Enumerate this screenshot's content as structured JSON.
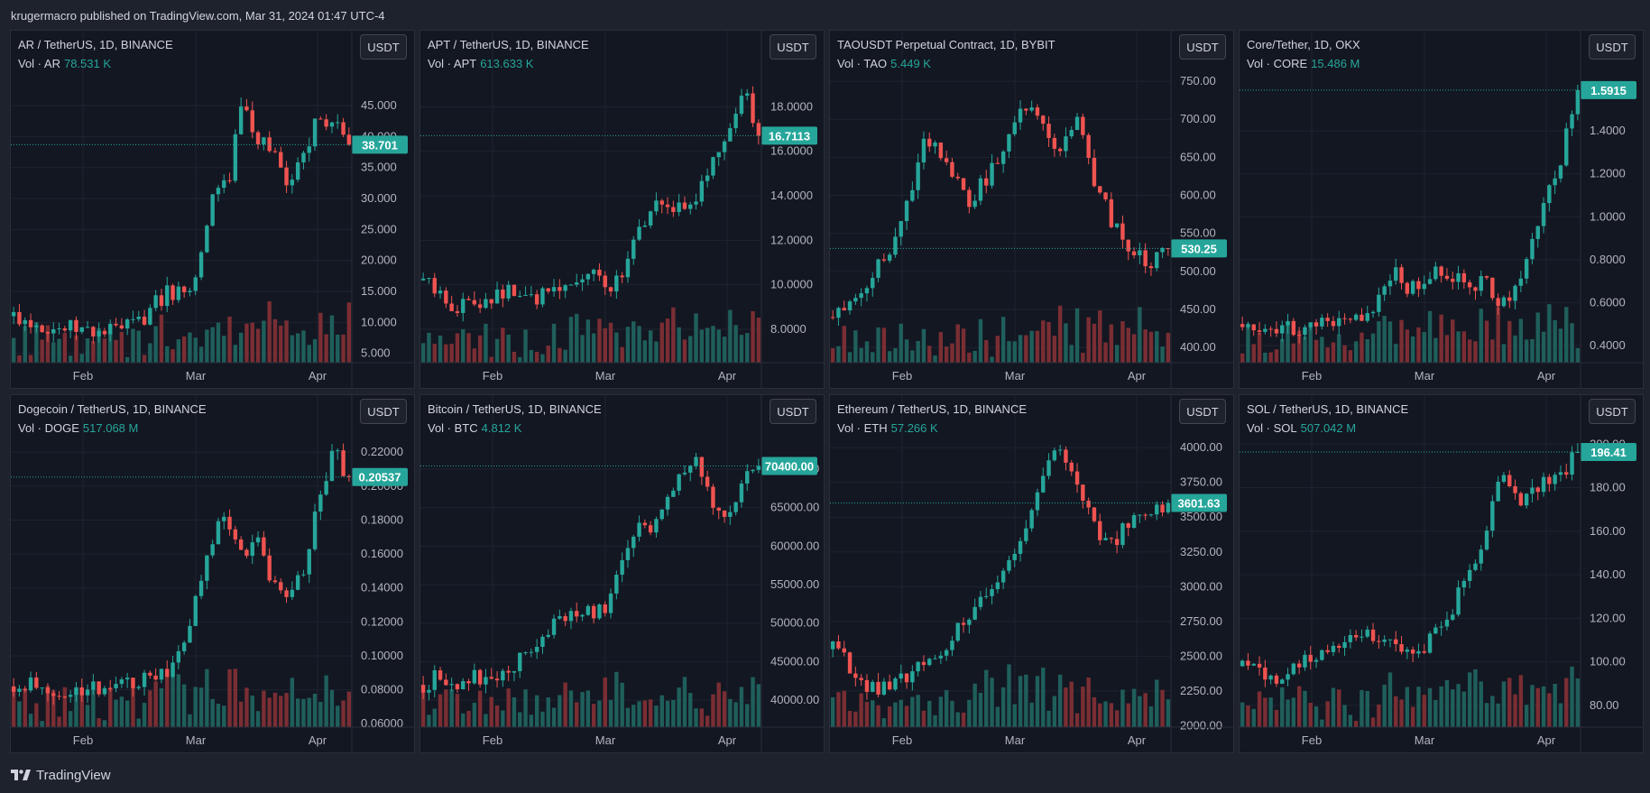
{
  "header": {
    "text": "krugermacro published on TradingView.com, Mar 31, 2024 01:47 UTC-4"
  },
  "footer": {
    "brand": "TradingView"
  },
  "colors": {
    "up": "#26a69a",
    "down": "#ef5350",
    "bg": "#131722",
    "grid": "#1f2330",
    "text": "#b2b5be"
  },
  "x_ticks": [
    "Feb",
    "Mar",
    "Apr"
  ],
  "panels": [
    {
      "title": "AR / TetherUS, 1D, BINANCE",
      "vol_label": "Vol · AR",
      "vol_value": "78.531 K",
      "currency": "USDT",
      "last_price": "38.701",
      "last_value": 38.7,
      "ylim": [
        3.5,
        52
      ],
      "yticks": [
        "5.000",
        "10.000",
        "15.000",
        "20.000",
        "25.000",
        "30.000",
        "35.000",
        "40.000",
        "45.000"
      ],
      "trend": [
        11,
        10.5,
        9.5,
        9,
        9,
        8.5,
        8.5,
        9,
        9.5,
        12,
        15,
        15,
        17,
        30,
        32,
        45,
        40,
        37,
        33,
        36,
        44,
        42,
        38.7
      ]
    },
    {
      "title": "APT / TetherUS, 1D, BINANCE",
      "vol_label": "Vol · APT",
      "vol_value": "613.633 K",
      "currency": "USDT",
      "last_price": "16.7113",
      "last_value": 16.7,
      "ylim": [
        6.5,
        20
      ],
      "yticks": [
        "8.0000",
        "10.0000",
        "12.0000",
        "14.0000",
        "16.0000",
        "18.0000"
      ],
      "trend": [
        10.2,
        9.6,
        9,
        9.2,
        9.4,
        9.7,
        9.6,
        9.3,
        9.5,
        9.8,
        10.1,
        10.5,
        9.8,
        10.2,
        12.3,
        13.6,
        13.3,
        13.6,
        14.2,
        15.5,
        17.2,
        18.8,
        16.7
      ]
    },
    {
      "title": "TAOUSDT Perpetual Contract, 1D, BYBIT",
      "vol_label": "Vol · TAO",
      "vol_value": "5.449 K",
      "currency": "USDT",
      "last_price": "530.25",
      "last_value": 530.25,
      "ylim": [
        380,
        775
      ],
      "yticks": [
        "400.00",
        "450.00",
        "500.00",
        "550.00",
        "600.00",
        "650.00",
        "700.00",
        "750.00"
      ],
      "trend": [
        440,
        460,
        480,
        510,
        540,
        600,
        680,
        660,
        630,
        590,
        620,
        650,
        700,
        720,
        690,
        650,
        710,
        620,
        580,
        540,
        520,
        510,
        530
      ]
    },
    {
      "title": "Core/Tether, 1D, OKX",
      "vol_label": "Vol · CORE",
      "vol_value": "15.486 M",
      "currency": "USDT",
      "last_price": "1.5915",
      "last_value": 1.59,
      "ylim": [
        0.32,
        1.72
      ],
      "yticks": [
        "0.4000",
        "0.6000",
        "0.8000",
        "1.0000",
        "1.2000",
        "1.4000"
      ],
      "trend": [
        0.5,
        0.5,
        0.49,
        0.48,
        0.48,
        0.49,
        0.5,
        0.52,
        0.55,
        0.6,
        0.75,
        0.65,
        0.7,
        0.75,
        0.72,
        0.7,
        0.68,
        0.6,
        0.65,
        0.9,
        1.1,
        1.3,
        1.59
      ]
    },
    {
      "title": "Dogecoin / TetherUS, 1D, BINANCE",
      "vol_label": "Vol · DOGE",
      "vol_value": "517.068 M",
      "currency": "USDT",
      "last_price": "0.20537",
      "last_value": 0.2054,
      "ylim": [
        0.058,
        0.235
      ],
      "yticks": [
        "0.06000",
        "0.08000",
        "0.10000",
        "0.12000",
        "0.14000",
        "0.16000",
        "0.18000",
        "0.20000",
        "0.22000"
      ],
      "trend": [
        0.082,
        0.085,
        0.082,
        0.081,
        0.08,
        0.081,
        0.082,
        0.083,
        0.084,
        0.086,
        0.088,
        0.1,
        0.14,
        0.17,
        0.18,
        0.16,
        0.17,
        0.14,
        0.13,
        0.15,
        0.19,
        0.22,
        0.205
      ]
    },
    {
      "title": "Bitcoin / TetherUS, 1D, BINANCE",
      "vol_label": "Vol · BTC",
      "vol_value": "4.812 K",
      "currency": "USDT",
      "last_price": "70400.00",
      "last_value": 70400,
      "ylim": [
        36500,
        75500
      ],
      "yticks": [
        "40000.00",
        "45000.00",
        "50000.00",
        "55000.00",
        "60000.00",
        "65000.00",
        "70000.00"
      ],
      "trend": [
        42000,
        43000,
        42000,
        43000,
        42500,
        43000,
        44000,
        47000,
        49000,
        51000,
        52000,
        51500,
        52000,
        57000,
        62000,
        63000,
        67000,
        70000,
        71000,
        66000,
        64000,
        68000,
        70400
      ]
    },
    {
      "title": "Ethereum / TetherUS, 1D, BINANCE",
      "vol_label": "Vol · ETH",
      "vol_value": "57.266 K",
      "currency": "USDT",
      "last_price": "3601.63",
      "last_value": 3601.63,
      "ylim": [
        1990,
        4150
      ],
      "yticks": [
        "2000.00",
        "2250.00",
        "2500.00",
        "2750.00",
        "3000.00",
        "3250.00",
        "3500.00",
        "3750.00",
        "4000.00"
      ],
      "trend": [
        2550,
        2450,
        2300,
        2250,
        2300,
        2350,
        2450,
        2500,
        2650,
        2800,
        2900,
        3050,
        3300,
        3500,
        3900,
        4000,
        3700,
        3500,
        3300,
        3400,
        3550,
        3500,
        3601
      ]
    },
    {
      "title": "SOL / TetherUS, 1D, BINANCE",
      "vol_label": "Vol · SOL",
      "vol_value": "507.042 M",
      "currency": "USDT",
      "last_price": "196.41",
      "last_value": 196.41,
      "ylim": [
        70,
        208
      ],
      "yticks": [
        "80.00",
        "100.00",
        "120.00",
        "140.00",
        "160.00",
        "180.00",
        "200.00"
      ],
      "trend": [
        98,
        96,
        92,
        95,
        100,
        104,
        108,
        110,
        112,
        113,
        110,
        106,
        108,
        115,
        128,
        140,
        160,
        185,
        175,
        178,
        184,
        188,
        196
      ]
    }
  ]
}
